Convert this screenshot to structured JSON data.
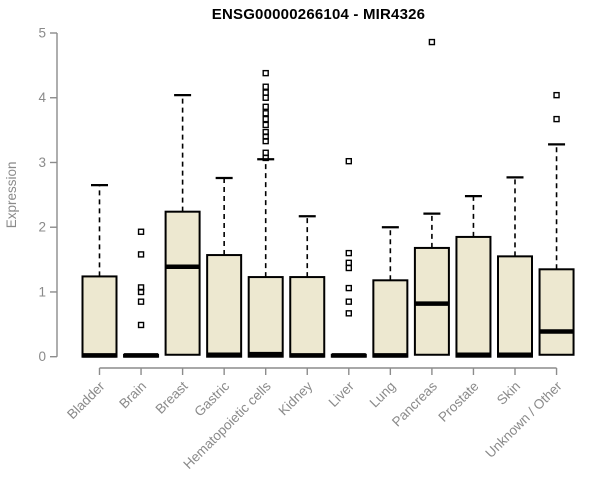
{
  "chart_data": {
    "type": "boxplot",
    "title": "ENSG00000266104 - MIR4326",
    "ylabel": "Expression",
    "xlabel": "",
    "ylim": [
      0,
      5
    ],
    "yticks": [
      0,
      1,
      2,
      3,
      4,
      5
    ],
    "grid": false,
    "legend": null,
    "colors": {
      "box_fill": "#ede8d0",
      "box_border": "#000000",
      "median": "#000000",
      "whisker": "#000000",
      "outlier": "#000000",
      "axis": "#8c8c8c",
      "tick_label": "#8a8a8a",
      "axis_label": "#8a8a8a",
      "title": "#000000"
    },
    "categories": [
      "Bladder",
      "Brain",
      "Breast",
      "Gastric",
      "Hematopoietic cells",
      "Kidney",
      "Liver",
      "Lung",
      "Pancreas",
      "Prostate",
      "Skin",
      "Unknown / Other"
    ],
    "boxes": [
      {
        "label": "Bladder",
        "whisker_low": 0,
        "q1": 0,
        "median": 0.02,
        "q3": 1.24,
        "whisker_high": 2.65,
        "outliers": []
      },
      {
        "label": "Brain",
        "whisker_low": 0,
        "q1": 0,
        "median": 0.02,
        "q3": 0.03,
        "whisker_high": 0.03,
        "outliers": [
          0.49,
          0.85,
          1.0,
          1.07,
          1.58,
          1.93
        ]
      },
      {
        "label": "Breast",
        "whisker_low": 0,
        "q1": 0.03,
        "median": 1.39,
        "q3": 2.24,
        "whisker_high": 4.04,
        "outliers": []
      },
      {
        "label": "Gastric",
        "whisker_low": 0,
        "q1": 0,
        "median": 0.03,
        "q3": 1.57,
        "whisker_high": 2.76,
        "outliers": []
      },
      {
        "label": "Hematopoietic cells",
        "whisker_low": 0,
        "q1": 0,
        "median": 0.04,
        "q3": 1.23,
        "whisker_high": 3.05,
        "outliers": [
          3.07,
          3.15,
          3.33,
          3.4,
          3.47,
          3.58,
          3.67,
          3.76,
          3.86,
          4.0,
          4.08,
          4.17,
          4.38
        ]
      },
      {
        "label": "Kidney",
        "whisker_low": 0,
        "q1": 0,
        "median": 0.02,
        "q3": 1.23,
        "whisker_high": 2.17,
        "outliers": []
      },
      {
        "label": "Liver",
        "whisker_low": 0,
        "q1": 0,
        "median": 0.02,
        "q3": 0.03,
        "whisker_high": 0.03,
        "outliers": [
          0.67,
          0.85,
          1.06,
          1.37,
          1.45,
          1.6,
          3.02
        ]
      },
      {
        "label": "Lung",
        "whisker_low": 0,
        "q1": 0,
        "median": 0.02,
        "q3": 1.18,
        "whisker_high": 2.0,
        "outliers": []
      },
      {
        "label": "Pancreas",
        "whisker_low": 0,
        "q1": 0.03,
        "median": 0.82,
        "q3": 1.68,
        "whisker_high": 2.21,
        "outliers": [
          4.86
        ]
      },
      {
        "label": "Prostate",
        "whisker_low": 0,
        "q1": 0,
        "median": 0.03,
        "q3": 1.85,
        "whisker_high": 2.48,
        "outliers": []
      },
      {
        "label": "Skin",
        "whisker_low": 0,
        "q1": 0,
        "median": 0.03,
        "q3": 1.55,
        "whisker_high": 2.77,
        "outliers": []
      },
      {
        "label": "Unknown / Other",
        "whisker_low": 0,
        "q1": 0.03,
        "median": 0.39,
        "q3": 1.35,
        "whisker_high": 3.28,
        "outliers": [
          3.67,
          4.04
        ]
      }
    ]
  }
}
